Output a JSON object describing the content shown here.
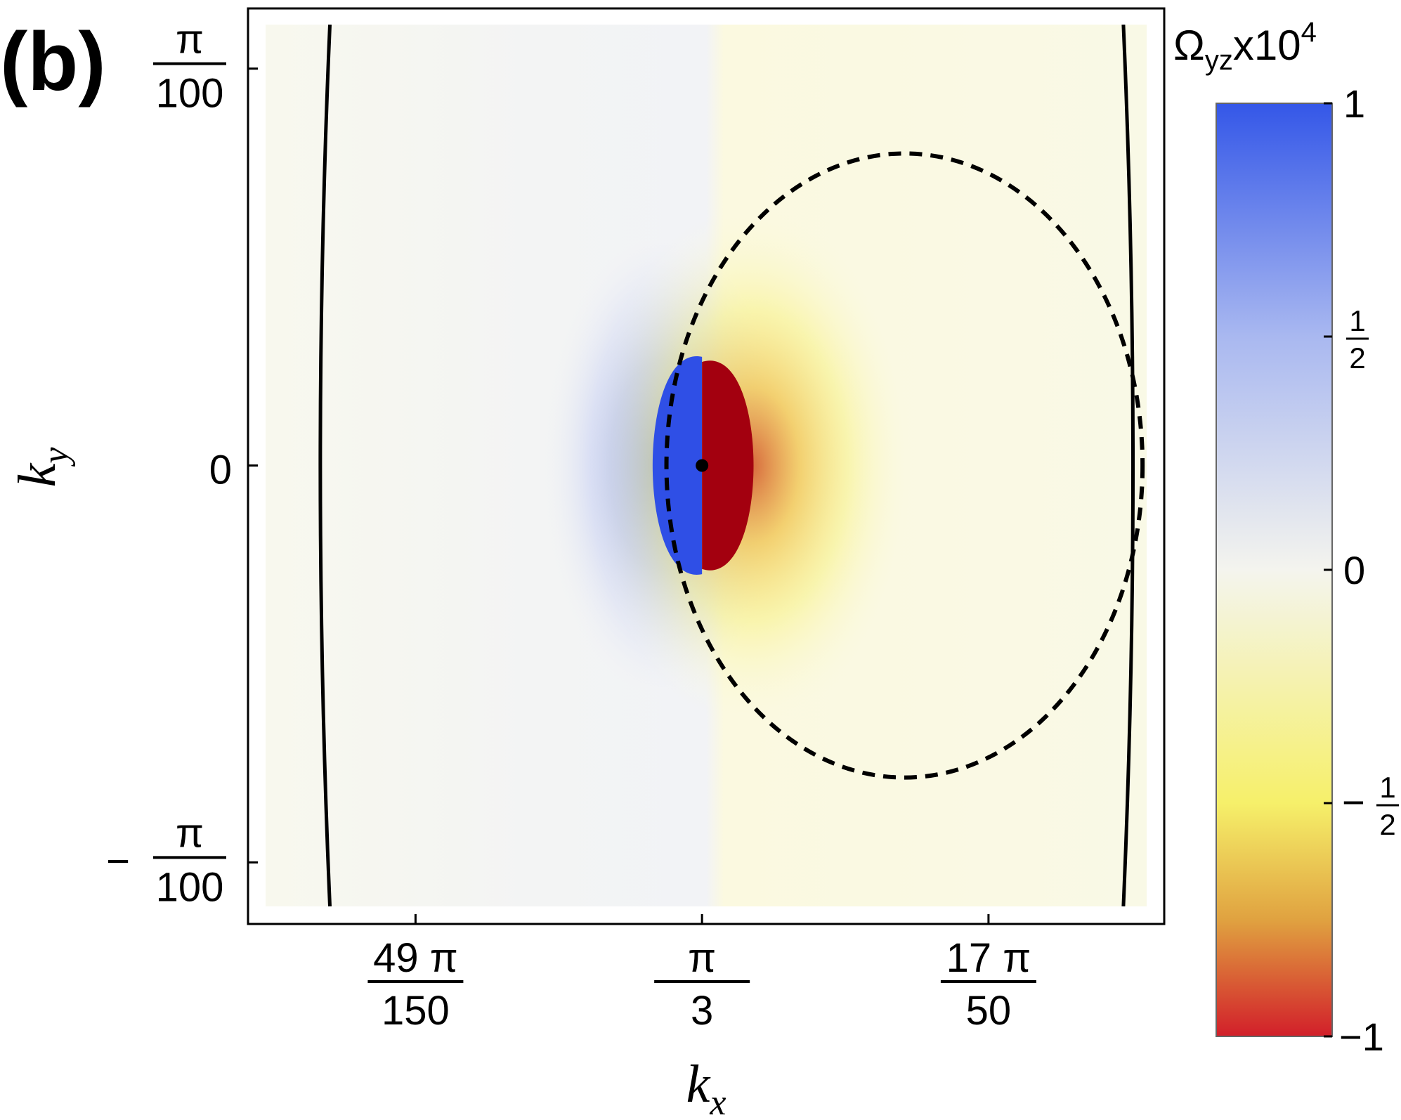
{
  "panel_label": "(b)",
  "colors": {
    "positive": "#2f4fe6",
    "negative": "#a3000f",
    "zero": "#f8f8f0",
    "background": "#fbfbe8",
    "contour": "#000000"
  },
  "chart_data": {
    "type": "heatmap",
    "x_axis": {
      "label": "k",
      "label_sub": "x",
      "range": [
        1.0153,
        1.0797
      ],
      "ticks": [
        {
          "value": 1.02626,
          "num": "49 π",
          "den": "150"
        },
        {
          "value": 1.0472,
          "num": "π",
          "den": "3"
        },
        {
          "value": 1.06814,
          "num": "17 π",
          "den": "50"
        }
      ]
    },
    "y_axis": {
      "label": "k",
      "label_sub": "y",
      "range": [
        -0.0349,
        0.0349
      ],
      "ticks": [
        {
          "value": 0.031416,
          "num": "π",
          "den": "100",
          "sign": ""
        },
        {
          "value": 0,
          "num": "0",
          "den": "",
          "sign": ""
        },
        {
          "value": -0.031416,
          "num": "π",
          "den": "100",
          "sign": "−"
        }
      ]
    },
    "colorbar": {
      "title": "Ω",
      "title_sub": "yz",
      "title_suffix": "x10",
      "title_sup": "4",
      "range": [
        -1,
        1
      ],
      "ticks": [
        {
          "value": 1,
          "text": "1",
          "num": "",
          "den": ""
        },
        {
          "value": 0.5,
          "text": "",
          "num": "1",
          "den": "2"
        },
        {
          "value": 0,
          "text": "0",
          "num": "",
          "den": ""
        },
        {
          "value": -0.5,
          "text": "−",
          "num": "1",
          "den": "2"
        },
        {
          "value": -1,
          "text": "−1",
          "num": "",
          "den": ""
        }
      ],
      "stops": [
        {
          "value": 1,
          "color": "#3457e8"
        },
        {
          "value": 0.5,
          "color": "#a9b8f0"
        },
        {
          "value": 0,
          "color": "#f4f4ee"
        },
        {
          "value": -0.5,
          "color": "#f6f06a"
        },
        {
          "value": -0.75,
          "color": "#e0a240"
        },
        {
          "value": -1,
          "color": "#d21f2a"
        }
      ]
    },
    "center_point": {
      "x": 1.0472,
      "y": 0
    },
    "dashed_ellipse": {
      "cx": 1.062,
      "cy": 0,
      "rx": 0.0174,
      "ry": 0.0247
    },
    "solid_curves": [
      {
        "name": "left-boundary",
        "x_mid": 1.0193,
        "x_end": 1.02,
        "y_end": 0.0349
      },
      {
        "name": "right-boundary",
        "x_mid": 1.0787,
        "x_end": 1.078,
        "y_end": 0.0349
      }
    ],
    "lobes": {
      "blue": {
        "x_min": 1.0429,
        "x_max": 1.0472,
        "y_half": 0.0086,
        "value": 1
      },
      "red": {
        "x_min": 1.0472,
        "x_max": 1.0514,
        "y_half": 0.0082,
        "value": -1
      }
    }
  }
}
